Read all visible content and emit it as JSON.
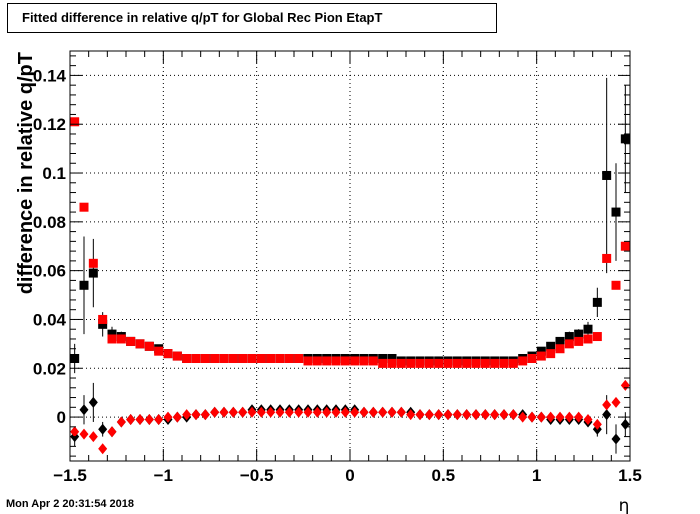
{
  "title": "Fitted difference in relative q/pT for Global Rec Pion EtapT",
  "timestamp": "Mon Apr  2 20:31:54 2018",
  "chart_data": {
    "type": "scatter",
    "title": "Fitted difference in relative q/pT for Global Rec Pion EtapT",
    "xlabel": "η",
    "ylabel": "difference in relative q/pT",
    "xlim": [
      -1.5,
      1.5
    ],
    "ylim": [
      -0.018,
      0.15
    ],
    "xticks": [
      -1.5,
      -1,
      -0.5,
      0,
      0.5,
      1,
      1.5
    ],
    "xtick_labels": [
      "−1.5",
      "−1",
      "−0.5",
      "0",
      "0.5",
      "1",
      "1.5"
    ],
    "yticks": [
      0,
      0.02,
      0.04,
      0.06,
      0.08,
      0.1,
      0.12,
      0.14
    ],
    "ytick_labels": [
      "0",
      "0.02",
      "0.04",
      "0.06",
      "0.08",
      "0.1",
      "0.12",
      "0.14"
    ],
    "grid": true,
    "x": [
      -1.475,
      -1.425,
      -1.375,
      -1.325,
      -1.275,
      -1.225,
      -1.175,
      -1.125,
      -1.075,
      -1.025,
      -0.975,
      -0.925,
      -0.875,
      -0.825,
      -0.775,
      -0.725,
      -0.675,
      -0.625,
      -0.575,
      -0.525,
      -0.475,
      -0.425,
      -0.375,
      -0.325,
      -0.275,
      -0.225,
      -0.175,
      -0.125,
      -0.075,
      -0.025,
      0.025,
      0.075,
      0.125,
      0.175,
      0.225,
      0.275,
      0.325,
      0.375,
      0.425,
      0.475,
      0.525,
      0.575,
      0.625,
      0.675,
      0.725,
      0.775,
      0.825,
      0.875,
      0.925,
      0.975,
      1.025,
      1.075,
      1.125,
      1.175,
      1.225,
      1.275,
      1.325,
      1.375,
      1.425,
      1.475
    ],
    "series": [
      {
        "marker": "square",
        "color": "#000000",
        "values": [
          0.024,
          0.054,
          0.059,
          0.038,
          0.034,
          0.033,
          0.031,
          0.03,
          0.029,
          0.028,
          0.026,
          0.025,
          0.024,
          0.024,
          0.024,
          0.024,
          0.024,
          0.024,
          0.024,
          0.024,
          0.024,
          0.024,
          0.024,
          0.024,
          0.024,
          0.024,
          0.024,
          0.024,
          0.024,
          0.024,
          0.024,
          0.024,
          0.024,
          0.024,
          0.024,
          0.023,
          0.023,
          0.023,
          0.023,
          0.023,
          0.023,
          0.023,
          0.023,
          0.023,
          0.023,
          0.023,
          0.023,
          0.023,
          0.024,
          0.025,
          0.027,
          0.029,
          0.031,
          0.033,
          0.034,
          0.036,
          0.047,
          0.099,
          0.084,
          0.114
        ],
        "errors": [
          0.006,
          0.02,
          0.014,
          0.005,
          0.003,
          0.002,
          0.0015,
          0.001,
          0.001,
          0.001,
          0.001,
          0.001,
          0.001,
          0.001,
          0.001,
          0.001,
          0.001,
          0.001,
          0.001,
          0.001,
          0.001,
          0.001,
          0.001,
          0.001,
          0.001,
          0.001,
          0.001,
          0.001,
          0.001,
          0.001,
          0.001,
          0.001,
          0.001,
          0.001,
          0.001,
          0.001,
          0.001,
          0.001,
          0.001,
          0.001,
          0.001,
          0.001,
          0.001,
          0.001,
          0.001,
          0.001,
          0.001,
          0.001,
          0.001,
          0.001,
          0.001,
          0.001,
          0.0015,
          0.002,
          0.002,
          0.003,
          0.006,
          0.04,
          0.02,
          0.022
        ]
      },
      {
        "marker": "square",
        "color": "#ff0000",
        "values": [
          0.121,
          0.086,
          0.063,
          0.04,
          0.032,
          0.032,
          0.031,
          0.03,
          0.029,
          0.027,
          0.026,
          0.025,
          0.024,
          0.024,
          0.024,
          0.024,
          0.024,
          0.024,
          0.024,
          0.024,
          0.024,
          0.024,
          0.024,
          0.024,
          0.024,
          0.023,
          0.023,
          0.023,
          0.023,
          0.023,
          0.023,
          0.023,
          0.023,
          0.022,
          0.022,
          0.022,
          0.022,
          0.022,
          0.022,
          0.022,
          0.022,
          0.022,
          0.022,
          0.022,
          0.022,
          0.022,
          0.022,
          0.022,
          0.023,
          0.024,
          0.025,
          0.026,
          0.028,
          0.03,
          0.031,
          0.032,
          0.033,
          0.065,
          0.054,
          0.07
        ]
      },
      {
        "marker": "diamond",
        "color": "#000000",
        "values": [
          -0.008,
          0.003,
          0.006,
          -0.005,
          -0.006,
          -0.002,
          -0.001,
          -0.001,
          -0.001,
          -0.001,
          -0.001,
          0.0,
          0.0,
          0.001,
          0.001,
          0.002,
          0.002,
          0.002,
          0.002,
          0.003,
          0.003,
          0.003,
          0.003,
          0.003,
          0.003,
          0.003,
          0.003,
          0.003,
          0.003,
          0.003,
          0.003,
          0.002,
          0.002,
          0.002,
          0.002,
          0.002,
          0.002,
          0.001,
          0.001,
          0.001,
          0.001,
          0.001,
          0.001,
          0.001,
          0.001,
          0.001,
          0.001,
          0.001,
          0.001,
          0.0,
          0.0,
          -0.001,
          -0.001,
          -0.001,
          -0.001,
          -0.002,
          -0.005,
          0.001,
          -0.009,
          -0.003
        ],
        "errors": [
          0.004,
          0.006,
          0.008,
          0.003,
          0.002,
          0.0015,
          0.001,
          0.001,
          0.001,
          0.001,
          0.001,
          0.001,
          0.001,
          0.001,
          0.001,
          0.001,
          0.001,
          0.001,
          0.001,
          0.001,
          0.001,
          0.001,
          0.001,
          0.001,
          0.001,
          0.001,
          0.001,
          0.001,
          0.001,
          0.001,
          0.001,
          0.001,
          0.001,
          0.001,
          0.001,
          0.001,
          0.001,
          0.001,
          0.001,
          0.001,
          0.001,
          0.001,
          0.001,
          0.001,
          0.001,
          0.001,
          0.001,
          0.001,
          0.001,
          0.001,
          0.001,
          0.001,
          0.001,
          0.001,
          0.0015,
          0.002,
          0.003,
          0.008,
          0.006,
          0.005
        ]
      },
      {
        "marker": "diamond",
        "color": "#ff0000",
        "values": [
          -0.006,
          -0.007,
          -0.008,
          -0.013,
          -0.006,
          -0.002,
          -0.001,
          -0.001,
          -0.001,
          -0.001,
          0.0,
          0.0,
          0.001,
          0.001,
          0.001,
          0.002,
          0.002,
          0.002,
          0.002,
          0.002,
          0.002,
          0.002,
          0.002,
          0.002,
          0.002,
          0.002,
          0.002,
          0.002,
          0.002,
          0.002,
          0.002,
          0.002,
          0.002,
          0.002,
          0.002,
          0.002,
          0.001,
          0.001,
          0.001,
          0.001,
          0.001,
          0.001,
          0.001,
          0.001,
          0.001,
          0.001,
          0.001,
          0.001,
          0.0,
          0.0,
          0.0,
          0.0,
          0.0,
          0.0,
          0.0,
          -0.001,
          -0.003,
          0.005,
          0.006,
          0.013
        ]
      }
    ]
  }
}
